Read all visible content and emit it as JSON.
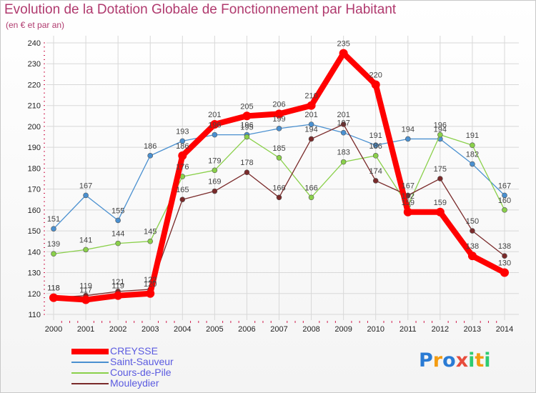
{
  "header": {
    "title": "Evolution de la Dotation Globale de Fonctionnement par Habitant",
    "subtitle": "(en € et par an)"
  },
  "chart_data": {
    "type": "line",
    "title": "Evolution de la Dotation Globale de Fonctionnement par Habitant",
    "subtitle": "(en € et par an)",
    "xlabel": "",
    "ylabel": "",
    "x": [
      "2000",
      "2001",
      "2002",
      "2003",
      "2004",
      "2005",
      "2006",
      "2007",
      "2008",
      "2009",
      "2010",
      "2011",
      "2012",
      "2013",
      "2014"
    ],
    "ylim": [
      110,
      240
    ],
    "yticks": [
      110,
      120,
      130,
      140,
      150,
      160,
      170,
      180,
      190,
      200,
      210,
      220,
      230,
      240
    ],
    "grid": true,
    "legend_position": "bottom-left",
    "series": [
      {
        "name": "CREYSSE",
        "color": "#ff0000",
        "values": [
          118,
          117,
          119,
          120,
          186,
          201,
          205,
          206,
          210,
          235,
          220,
          159,
          159,
          138,
          130
        ]
      },
      {
        "name": "Saint-Sauveur",
        "color": "#4a90d0",
        "values": [
          151,
          167,
          155,
          186,
          193,
          196,
          196,
          199,
          201,
          197,
          191,
          194,
          194,
          182,
          167
        ]
      },
      {
        "name": "Cours-de-Pile",
        "color": "#8ad04a",
        "values": [
          139,
          141,
          144,
          145,
          176,
          179,
          195,
          185,
          166,
          183,
          186,
          162,
          196,
          191,
          160
        ]
      },
      {
        "name": "Mouleydier",
        "color": "#7a2a2a",
        "values": [
          118,
          119,
          121,
          122,
          165,
          169,
          178,
          166,
          194,
          201,
          174,
          167,
          175,
          150,
          138
        ]
      }
    ]
  },
  "logo": {
    "letters": [
      "P",
      "r",
      "o",
      "x",
      "i",
      "t",
      "i"
    ],
    "colors": [
      "#2a7bd4",
      "#f39c12",
      "#2a7bd4",
      "#e74c3c",
      "#2ecc71",
      "#f39c12",
      "#2ecc71"
    ]
  }
}
